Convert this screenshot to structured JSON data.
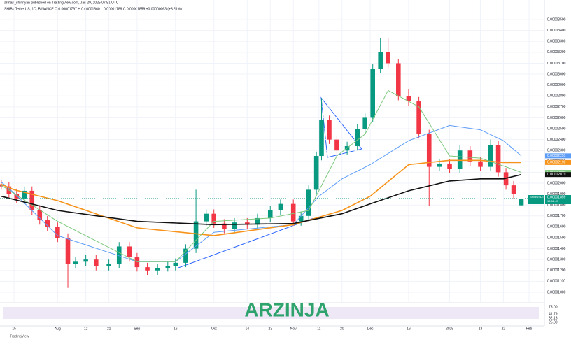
{
  "chart_data": {
    "type": "candlestick",
    "title": "arman_shirinyan published on TradingView.com, Jan 29, 2025 07:51 UTC",
    "subtitle": "SHIB / TetherUS, 1D, BINANCE  O 0.00001797  H 0.00001860  L 0.00001789  C 0.00001859  +0.00000063 (+3.51%)",
    "footer": "TradingView",
    "watermark": "ARZINJA",
    "up_color": "#089981",
    "down_color": "#f23645",
    "xlim": [
      8.5,
      221
    ],
    "xticks": [
      {
        "value": 14,
        "label": "15"
      },
      {
        "value": 31,
        "label": "Aug"
      },
      {
        "value": 42,
        "label": "12"
      },
      {
        "value": 51,
        "label": "21"
      },
      {
        "value": 62,
        "label": "Sep"
      },
      {
        "value": 77,
        "label": "16"
      },
      {
        "value": 92,
        "label": "Oct"
      },
      {
        "value": 105,
        "label": "14"
      },
      {
        "value": 114,
        "label": "23"
      },
      {
        "value": 123,
        "label": "Nov"
      },
      {
        "value": 133,
        "label": "11"
      },
      {
        "value": 142,
        "label": "20"
      },
      {
        "value": 153,
        "label": "Dec"
      },
      {
        "value": 168,
        "label": "16"
      },
      {
        "value": 184,
        "label": "2025"
      },
      {
        "value": 196,
        "label": "13"
      },
      {
        "value": 205,
        "label": "22"
      },
      {
        "value": 215,
        "label": "Feb"
      }
    ],
    "ylim": [
      9.1e-06,
      3.68e-05
    ],
    "yticks": [
      {
        "value": 1e-05,
        "label": "0.00001000"
      },
      {
        "value": 1.1e-05,
        "label": "0.00001100"
      },
      {
        "value": 1.2e-05,
        "label": "0.00001200"
      },
      {
        "value": 1.3e-05,
        "label": "0.00001300"
      },
      {
        "value": 1.4e-05,
        "label": "0.00001400"
      },
      {
        "value": 1.5e-05,
        "label": "0.00001500"
      },
      {
        "value": 1.6e-05,
        "label": "0.00001600"
      },
      {
        "value": 1.7e-05,
        "label": "0.00001700"
      },
      {
        "value": 1.8e-05,
        "label": "0.00001800"
      },
      {
        "value": 1.9e-05,
        "label": "0.00001900"
      },
      {
        "value": 2e-05,
        "label": "0.00002000"
      },
      {
        "value": 2.1e-05,
        "label": "0.00002100"
      },
      {
        "value": 2.2e-05,
        "label": "0.00002200"
      },
      {
        "value": 2.3e-05,
        "label": "0.00002300"
      },
      {
        "value": 2.4e-05,
        "label": "0.00002400"
      },
      {
        "value": 2.5e-05,
        "label": "0.00002500"
      },
      {
        "value": 2.6e-05,
        "label": "0.00002600"
      },
      {
        "value": 2.7e-05,
        "label": "0.00002700"
      },
      {
        "value": 2.8e-05,
        "label": "0.00002800"
      },
      {
        "value": 2.9e-05,
        "label": "0.00002900"
      },
      {
        "value": 3e-05,
        "label": "0.00003000"
      },
      {
        "value": 3.1e-05,
        "label": "0.00003100"
      },
      {
        "value": 3.2e-05,
        "label": "0.00003200"
      },
      {
        "value": 3.3e-05,
        "label": "0.00003300"
      },
      {
        "value": 3.4e-05,
        "label": "0.00003400"
      },
      {
        "value": 3.5e-05,
        "label": "0.00003500"
      }
    ],
    "x": [
      9,
      12,
      15,
      18,
      21,
      24,
      27,
      31,
      35,
      38,
      42,
      46,
      51,
      55,
      59,
      62,
      66,
      70,
      74,
      77,
      81,
      85,
      89,
      92,
      96,
      100,
      105,
      109,
      114,
      118,
      123,
      126,
      129,
      132,
      134,
      137,
      140,
      144,
      148,
      151,
      154,
      157,
      160,
      164,
      168,
      172,
      176,
      180,
      184,
      188,
      192,
      196,
      200,
      203,
      206,
      209,
      212
    ],
    "open": [
      1.99e-05,
      1.97e-05,
      1.9e-05,
      1.86e-05,
      1.93e-05,
      1.75e-05,
      1.66e-05,
      1.6e-05,
      1.5e-05,
      1.26e-05,
      1.28e-05,
      1.3e-05,
      1.24e-05,
      1.26e-05,
      1.42e-05,
      1.32e-05,
      1.23e-05,
      1.2e-05,
      1.22e-05,
      1.24e-05,
      1.27e-05,
      1.4e-05,
      1.65e-05,
      1.72e-05,
      1.63e-05,
      1.58e-05,
      1.64e-05,
      1.62e-05,
      1.68e-05,
      1.75e-05,
      1.81e-05,
      1.65e-05,
      1.7e-05,
      1.94e-05,
      2.25e-05,
      2.58e-05,
      2.4e-05,
      2.3e-05,
      2.34e-05,
      2.5e-05,
      2.6e-05,
      3.05e-05,
      3.2e-05,
      3.1e-05,
      2.8e-05,
      2.75e-05,
      2.45e-05,
      2.15e-05,
      2.18e-05,
      2.13e-05,
      2.3e-05,
      2.2e-05,
      2.15e-05,
      2.35e-05,
      2.1e-05,
      1.98e-05,
      1.797e-05
    ],
    "high": [
      2.03e-05,
      2.01e-05,
      1.95e-05,
      1.97e-05,
      1.97e-05,
      1.79e-05,
      1.7e-05,
      1.64e-05,
      1.54e-05,
      1.32e-05,
      1.34e-05,
      1.34e-05,
      1.3e-05,
      1.46e-05,
      1.46e-05,
      1.36e-05,
      1.27e-05,
      1.26e-05,
      1.28e-05,
      1.31e-05,
      1.44e-05,
      1.94e-05,
      1.76e-05,
      1.76e-05,
      1.67e-05,
      1.68e-05,
      1.68e-05,
      1.72e-05,
      1.79e-05,
      1.85e-05,
      1.85e-05,
      1.74e-05,
      1.98e-05,
      2.29e-05,
      2.78e-05,
      2.62e-05,
      2.44e-05,
      2.38e-05,
      2.54e-05,
      2.64e-05,
      3.09e-05,
      3.33e-05,
      3.33e-05,
      3.14e-05,
      2.86e-05,
      2.79e-05,
      2.49e-05,
      2.22e-05,
      2.22e-05,
      2.35e-05,
      2.34e-05,
      2.24e-05,
      2.4e-05,
      2.39e-05,
      2.14e-05,
      2.02e-05,
      1.86e-05
    ],
    "low": [
      1.94e-05,
      1.86e-05,
      1.82e-05,
      1.82e-05,
      1.71e-05,
      1.62e-05,
      1.56e-05,
      1.46e-05,
      1.04e-05,
      1.22e-05,
      1.24e-05,
      1.2e-05,
      1.2e-05,
      1.22e-05,
      1.28e-05,
      1.19e-05,
      1.16e-05,
      1.16e-05,
      1.19e-05,
      1.2e-05,
      1.23e-05,
      1.36e-05,
      1.61e-05,
      1.59e-05,
      1.54e-05,
      1.54e-05,
      1.58e-05,
      1.58e-05,
      1.64e-05,
      1.71e-05,
      1.61e-05,
      1.61e-05,
      1.66e-05,
      1.9e-05,
      2.21e-05,
      2.36e-05,
      2.26e-05,
      2.26e-05,
      2.3e-05,
      2.46e-05,
      2.56e-05,
      3.01e-05,
      3.06e-05,
      2.76e-05,
      2.71e-05,
      2.41e-05,
      1.79e-05,
      2.11e-05,
      2.09e-05,
      2.09e-05,
      2.16e-05,
      2.11e-05,
      2.11e-05,
      2.06e-05,
      1.94e-05,
      1.86e-05,
      1.789e-05
    ],
    "close": [
      1.97e-05,
      1.9e-05,
      1.86e-05,
      1.93e-05,
      1.75e-05,
      1.66e-05,
      1.6e-05,
      1.5e-05,
      1.26e-05,
      1.28e-05,
      1.3e-05,
      1.24e-05,
      1.26e-05,
      1.42e-05,
      1.32e-05,
      1.23e-05,
      1.2e-05,
      1.22e-05,
      1.24e-05,
      1.27e-05,
      1.4e-05,
      1.65e-05,
      1.72e-05,
      1.63e-05,
      1.58e-05,
      1.64e-05,
      1.62e-05,
      1.68e-05,
      1.75e-05,
      1.81e-05,
      1.65e-05,
      1.7e-05,
      1.94e-05,
      2.25e-05,
      2.58e-05,
      2.4e-05,
      2.3e-05,
      2.34e-05,
      2.5e-05,
      2.6e-05,
      3.05e-05,
      3.2e-05,
      3.1e-05,
      2.8e-05,
      2.75e-05,
      2.45e-05,
      2.15e-05,
      2.18e-05,
      2.13e-05,
      2.3e-05,
      2.2e-05,
      2.15e-05,
      2.35e-05,
      2.1e-05,
      1.98e-05,
      1.9e-05,
      1.859e-05
    ],
    "last_close_label": "0.00001859",
    "symbol_tag": "SHIBUSDT",
    "countdown": "16:58:45",
    "series": [
      {
        "color": "#5b9cf6",
        "x": [
          9,
          14,
          31,
          62,
          77,
          92,
          123,
          133,
          142,
          153,
          168,
          184,
          196,
          205,
          212
        ],
        "values": [
          2.01e-05,
          1.91e-05,
          1.52e-05,
          1.28e-05,
          1.28e-05,
          1.55e-05,
          1.62e-05,
          1.88e-05,
          2.04e-05,
          2.17e-05,
          2.39e-05,
          2.53e-05,
          2.49e-05,
          2.39e-05,
          2.251e-05
        ],
        "last_label": "0.00002251"
      },
      {
        "color": "#f7931a",
        "x": [
          9,
          14,
          31,
          62,
          92,
          123,
          142,
          153,
          168,
          184,
          196,
          205,
          212
        ],
        "values": [
          1.99e-05,
          1.94e-05,
          1.84e-05,
          1.59e-05,
          1.52e-05,
          1.62e-05,
          1.75e-05,
          1.88e-05,
          2.17e-05,
          2.21e-05,
          2.21e-05,
          2.19e-05,
          2.1899e-05
        ],
        "last_label": "0.00002190"
      },
      {
        "color": "#7dc87d",
        "x": [
          9,
          31,
          62,
          77,
          92,
          114,
          129,
          140,
          151,
          160,
          172,
          184,
          196,
          206,
          212
        ],
        "values": [
          1.98e-05,
          1.65e-05,
          1.28e-05,
          1.28e-05,
          1.65e-05,
          1.68e-05,
          1.75e-05,
          2.25e-05,
          2.45e-05,
          2.85e-05,
          2.7e-05,
          2.25e-05,
          2.23e-05,
          2.15e-05,
          2.099e-05
        ],
        "last_label": "0.00002099"
      },
      {
        "color": "#111111",
        "x": [
          9,
          31,
          62,
          92,
          123,
          142,
          153,
          168,
          184,
          196,
          205,
          212
        ],
        "values": [
          1.88e-05,
          1.75e-05,
          1.65e-05,
          1.62e-05,
          1.63e-05,
          1.72e-05,
          1.81e-05,
          1.93e-05,
          2.02e-05,
          2.04e-05,
          2.04e-05,
          2.079e-05
        ],
        "last_label": "0.00002079"
      }
    ],
    "rsi_labels": [
      "75.00",
      "41.79",
      "32.13",
      "25.00"
    ]
  }
}
